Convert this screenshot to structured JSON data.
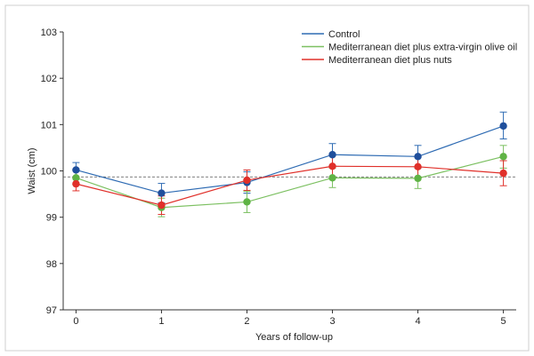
{
  "chart_data": {
    "type": "line",
    "xlabel": "Years of follow-up",
    "ylabel": "Waist (cm)",
    "x": [
      0,
      1,
      2,
      3,
      4,
      5
    ],
    "x_ticks": [
      "0",
      "1",
      "2",
      "3",
      "4",
      "5"
    ],
    "y_ticks": [
      "97",
      "98",
      "99",
      "100",
      "101",
      "102",
      "103"
    ],
    "xlim": [
      -0.15,
      5.15
    ],
    "ylim": [
      97,
      103
    ],
    "reference_line": 99.87,
    "grid": false,
    "legend_position": "top-right",
    "series": [
      {
        "name": "Control",
        "color": "#2e6bb3",
        "marker_color": "#1f4f9c",
        "values": [
          100.02,
          99.52,
          99.75,
          100.35,
          100.31,
          100.97
        ],
        "err_low": [
          99.86,
          99.31,
          99.52,
          100.12,
          100.06,
          100.69
        ],
        "err_high": [
          100.18,
          99.73,
          99.98,
          100.59,
          100.55,
          101.27
        ]
      },
      {
        "name": "Mediterranean diet plus extra-virgin olive oil",
        "color": "#7cc061",
        "marker_color": "#5fb345",
        "values": [
          99.85,
          99.21,
          99.33,
          99.85,
          99.84,
          100.31
        ],
        "err_low": [
          99.7,
          99.01,
          99.1,
          99.64,
          99.62,
          100.06
        ],
        "err_high": [
          100.01,
          99.41,
          99.56,
          100.06,
          100.07,
          100.55
        ]
      },
      {
        "name": "Mediterranean diet plus nuts",
        "color": "#e0302a",
        "marker_color": "#e0302a",
        "values": [
          99.72,
          99.26,
          99.8,
          100.1,
          100.09,
          99.95
        ],
        "err_low": [
          99.57,
          99.06,
          99.58,
          99.87,
          99.86,
          99.68
        ],
        "err_high": [
          99.87,
          99.46,
          100.02,
          100.33,
          100.32,
          100.22
        ]
      }
    ]
  }
}
